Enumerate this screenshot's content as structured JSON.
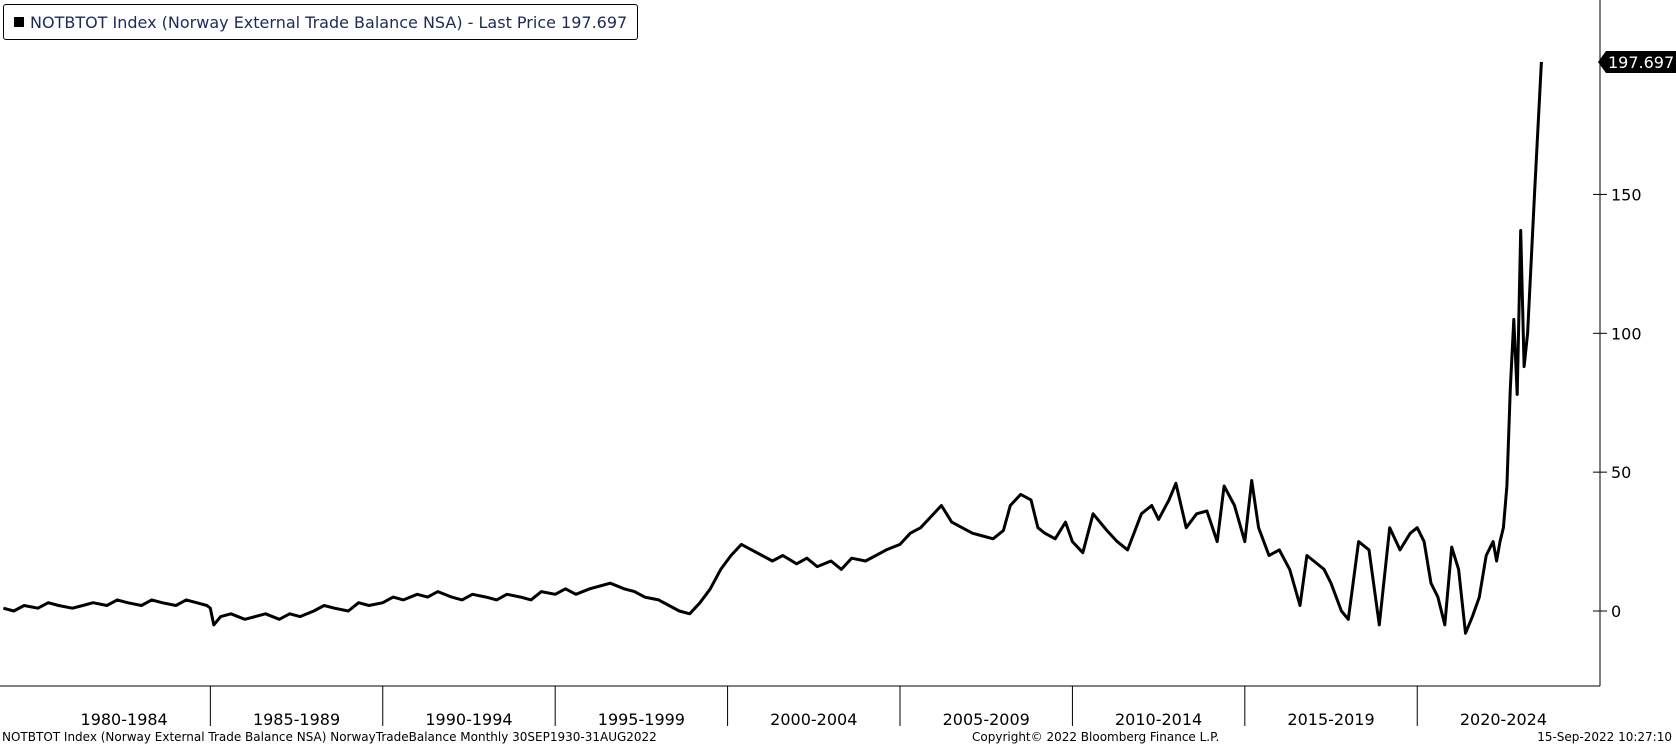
{
  "legend": {
    "text": "NOTBTOT Index (Norway External Trade Balance NSA) - Last Price 197.697"
  },
  "footer": {
    "left": "NOTBTOT Index (Norway External Trade Balance NSA) NorwayTradeBalance  Monthly 30SEP1930-31AUG2022",
    "center": "Copyright© 2022 Bloomberg Finance L.P.",
    "right": "15-Sep-2022 10:27:10"
  },
  "chart_data": {
    "type": "line",
    "title": "",
    "xlabel": "",
    "ylabel": "",
    "xlim": [
      1978.9,
      2025.3
    ],
    "ylim": [
      -27,
      220
    ],
    "y_ticks": [
      0,
      50,
      100,
      150
    ],
    "x_period_labels": [
      {
        "label": "1980-1984",
        "center": 1982.5
      },
      {
        "label": "1985-1989",
        "center": 1987.5
      },
      {
        "label": "1990-1994",
        "center": 1992.5
      },
      {
        "label": "1995-1999",
        "center": 1997.5
      },
      {
        "label": "2000-2004",
        "center": 2002.5
      },
      {
        "label": "2005-2009",
        "center": 2007.5
      },
      {
        "label": "2010-2014",
        "center": 2012.5
      },
      {
        "label": "2015-2019",
        "center": 2017.5
      },
      {
        "label": "2020-2024",
        "center": 2022.5
      }
    ],
    "x_boundaries": [
      1985,
      1990,
      1995,
      2000,
      2005,
      2010,
      2015,
      2020
    ],
    "last_value": "197.697",
    "line_color": "#000000",
    "grid": false,
    "series": [
      {
        "x": [
          1979.0,
          1979.3,
          1979.6,
          1980.0,
          1980.3,
          1980.6,
          1981.0,
          1981.3,
          1981.6,
          1982.0,
          1982.3,
          1982.6,
          1983.0,
          1983.3,
          1983.6,
          1984.0,
          1984.3,
          1984.6,
          1984.9,
          1985.0,
          1985.1,
          1985.3,
          1985.6,
          1986.0,
          1986.3,
          1986.6,
          1987.0,
          1987.3,
          1987.6,
          1988.0,
          1988.3,
          1988.6,
          1989.0,
          1989.3,
          1989.6,
          1990.0,
          1990.3,
          1990.6,
          1991.0,
          1991.3,
          1991.6,
          1992.0,
          1992.3,
          1992.6,
          1993.0,
          1993.3,
          1993.6,
          1994.0,
          1994.3,
          1994.6,
          1995.0,
          1995.3,
          1995.6,
          1996.0,
          1996.3,
          1996.6,
          1997.0,
          1997.3,
          1997.6,
          1998.0,
          1998.3,
          1998.6,
          1998.9,
          1999.2,
          1999.5,
          1999.8,
          2000.1,
          2000.4,
          2000.7,
          2001.0,
          2001.3,
          2001.6,
          2002.0,
          2002.3,
          2002.6,
          2003.0,
          2003.3,
          2003.6,
          2004.0,
          2004.3,
          2004.6,
          2005.0,
          2005.3,
          2005.6,
          2005.9,
          2006.2,
          2006.5,
          2006.8,
          2007.1,
          2007.4,
          2007.7,
          2008.0,
          2008.2,
          2008.5,
          2008.8,
          2009.0,
          2009.2,
          2009.5,
          2009.8,
          2010.0,
          2010.3,
          2010.6,
          2011.0,
          2011.3,
          2011.6,
          2012.0,
          2012.3,
          2012.5,
          2012.8,
          2013.0,
          2013.3,
          2013.6,
          2013.9,
          2014.2,
          2014.4,
          2014.7,
          2015.0,
          2015.2,
          2015.4,
          2015.7,
          2016.0,
          2016.3,
          2016.6,
          2016.8,
          2017.0,
          2017.3,
          2017.5,
          2017.8,
          2018.0,
          2018.3,
          2018.6,
          2018.9,
          2019.2,
          2019.5,
          2019.8,
          2020.0,
          2020.2,
          2020.4,
          2020.6,
          2020.8,
          2021.0,
          2021.2,
          2021.4,
          2021.6,
          2021.8,
          2022.0,
          2022.2,
          2022.3,
          2022.4,
          2022.5,
          2022.6,
          2022.7,
          2022.8,
          2022.9,
          2023.0,
          2023.1,
          2023.2,
          2023.4,
          2023.6
        ],
        "values": [
          1,
          0,
          2,
          1,
          3,
          2,
          1,
          2,
          3,
          2,
          4,
          3,
          2,
          4,
          3,
          2,
          4,
          3,
          2,
          1,
          -5,
          -2,
          -1,
          -3,
          -2,
          -1,
          -3,
          -1,
          -2,
          0,
          2,
          1,
          0,
          3,
          2,
          3,
          5,
          4,
          6,
          5,
          7,
          5,
          4,
          6,
          5,
          4,
          6,
          5,
          4,
          7,
          6,
          8,
          6,
          8,
          9,
          10,
          8,
          7,
          5,
          4,
          2,
          0,
          -1,
          3,
          8,
          15,
          20,
          24,
          22,
          20,
          18,
          20,
          17,
          19,
          16,
          18,
          15,
          19,
          18,
          20,
          22,
          24,
          28,
          30,
          34,
          38,
          32,
          30,
          28,
          27,
          26,
          29,
          38,
          42,
          40,
          30,
          28,
          26,
          32,
          25,
          21,
          35,
          29,
          25,
          22,
          35,
          38,
          33,
          40,
          46,
          30,
          35,
          36,
          25,
          45,
          38,
          25,
          47,
          30,
          20,
          22,
          15,
          2,
          20,
          18,
          15,
          10,
          0,
          -3,
          25,
          22,
          -5,
          30,
          22,
          28,
          30,
          25,
          10,
          5,
          -5,
          23,
          15,
          -8,
          -2,
          5,
          20,
          25,
          18,
          25,
          30,
          45,
          80,
          105,
          78,
          137,
          88,
          100,
          150,
          197.697
        ]
      }
    ]
  }
}
